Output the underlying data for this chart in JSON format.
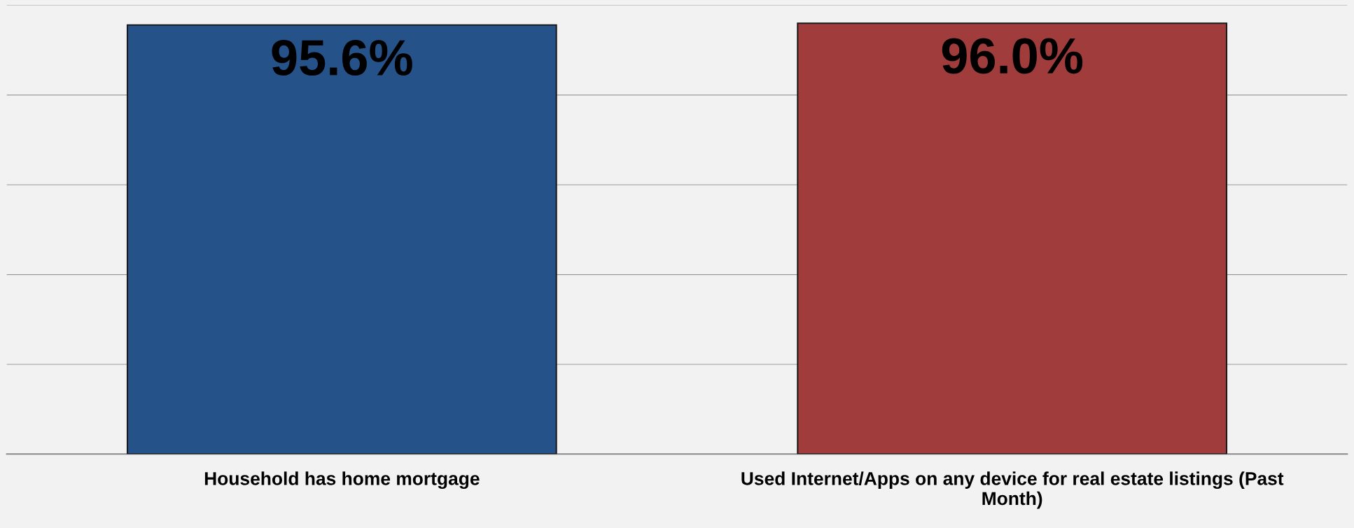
{
  "chart_data": {
    "type": "bar",
    "categories": [
      "Household has home mortgage",
      "Used Internet/Apps on any device for real estate listings (Past Month)"
    ],
    "values": [
      95.6,
      96.0
    ],
    "colors": [
      "#26528a",
      "#a03c3c"
    ],
    "value_labels": [
      "95.6%",
      "96.0%"
    ],
    "ylim": [
      0,
      100
    ],
    "yticks": [
      {
        "value": 0,
        "label": null
      },
      {
        "value": 20,
        "label": null
      },
      {
        "value": 40,
        "label": null
      },
      {
        "value": 60,
        "label": null
      },
      {
        "value": 80,
        "label": null
      },
      {
        "value": 100,
        "label": null
      }
    ],
    "tick_labels": "x",
    "grid": "y",
    "legend": false
  }
}
